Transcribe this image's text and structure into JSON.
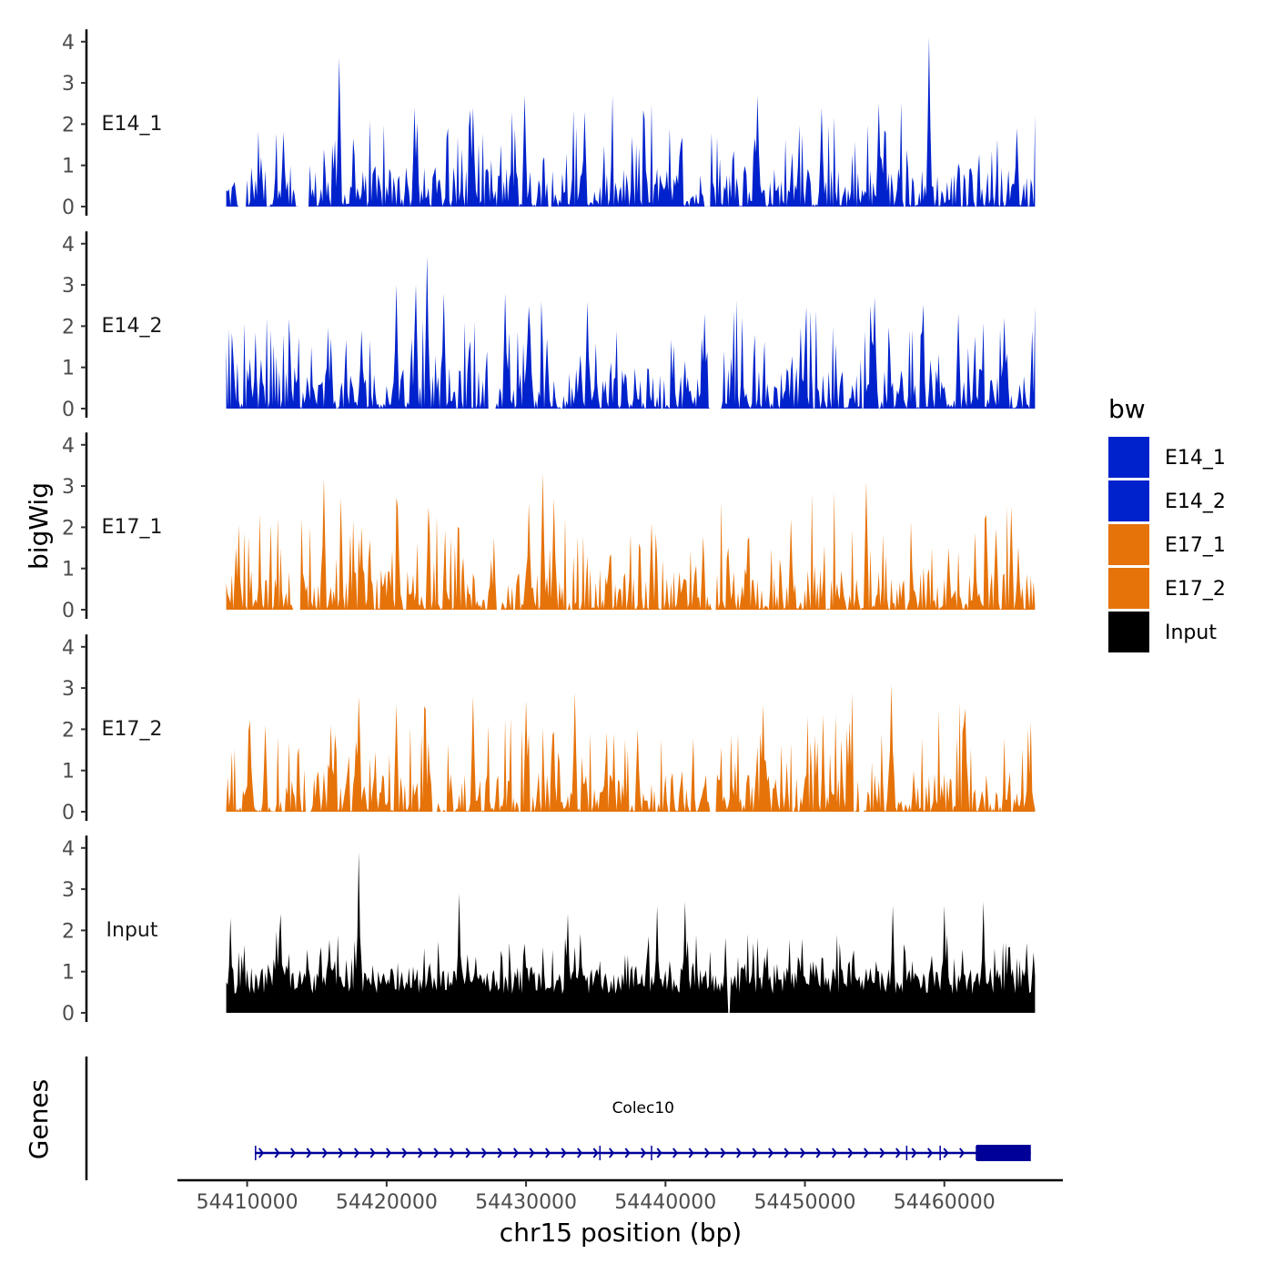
{
  "chart_data": {
    "type": "area",
    "ylabel": "bigWig",
    "genes_label": "Genes",
    "xlabel": "chr15 position (bp)",
    "x_range": [
      54408500,
      54466500
    ],
    "y_range": [
      0,
      4.2
    ],
    "xlim": [
      54405000,
      54468500
    ],
    "x_ticks": [
      54410000,
      54420000,
      54430000,
      54440000,
      54450000,
      54460000
    ],
    "x_tick_labels": [
      "54410000",
      "54420000",
      "54430000",
      "54440000",
      "54450000",
      "54460000"
    ],
    "y_ticks": [
      0,
      1,
      2,
      3,
      4
    ],
    "y_tick_labels": [
      "0",
      "1",
      "2",
      "3",
      "4"
    ],
    "tracks": [
      {
        "name": "E14_1",
        "color": "#0022CC",
        "max": 4.1,
        "peaks": [
          [
            54411000,
            1.2
          ],
          [
            54412600,
            1.8
          ],
          [
            54416600,
            3.6
          ],
          [
            54422000,
            2.4
          ],
          [
            54426200,
            2.4
          ],
          [
            54429900,
            2.7
          ],
          [
            54434200,
            2.3
          ],
          [
            54446600,
            2.7
          ],
          [
            54451200,
            2.4
          ],
          [
            54455300,
            2.5
          ],
          [
            54458900,
            4.1
          ],
          [
            54465200,
            1.9
          ]
        ]
      },
      {
        "name": "E14_2",
        "color": "#0022CC",
        "max": 3.7,
        "peaks": [
          [
            54409000,
            1.3
          ],
          [
            54411000,
            1.2
          ],
          [
            54418200,
            1.9
          ],
          [
            54420700,
            3.0
          ],
          [
            54422100,
            3.0
          ],
          [
            54422900,
            3.7
          ],
          [
            54424100,
            2.8
          ],
          [
            54428500,
            2.8
          ],
          [
            54431500,
            1.7
          ],
          [
            54434400,
            2.6
          ],
          [
            54442800,
            2.3
          ],
          [
            54455000,
            2.7
          ],
          [
            54461000,
            2.3
          ],
          [
            54464300,
            2.2
          ]
        ]
      },
      {
        "name": "E17_1",
        "color": "#E6730A",
        "max": 3.3,
        "peaks": [
          [
            54409200,
            1.5
          ],
          [
            54415500,
            3.2
          ],
          [
            54418200,
            2.0
          ],
          [
            54420800,
            2.5
          ],
          [
            54423000,
            2.5
          ],
          [
            54430200,
            2.6
          ],
          [
            54431200,
            3.3
          ],
          [
            54432000,
            2.7
          ],
          [
            54439000,
            2.1
          ],
          [
            54449000,
            2.2
          ],
          [
            54454400,
            3.1
          ],
          [
            54460300,
            1.5
          ],
          [
            54463000,
            2.3
          ],
          [
            54464800,
            2.5
          ]
        ]
      },
      {
        "name": "E17_2",
        "color": "#E6730A",
        "max": 3.1,
        "peaks": [
          [
            54410200,
            2.2
          ],
          [
            54411300,
            2.1
          ],
          [
            54416000,
            2.1
          ],
          [
            54418000,
            2.8
          ],
          [
            54420700,
            2.6
          ],
          [
            54426200,
            2.8
          ],
          [
            54430000,
            2.7
          ],
          [
            54433500,
            2.9
          ],
          [
            54438000,
            2.0
          ],
          [
            54443400,
            2.8
          ],
          [
            54447000,
            2.6
          ],
          [
            54453200,
            2.2
          ],
          [
            54456200,
            3.1
          ],
          [
            54461500,
            2.5
          ]
        ]
      },
      {
        "name": "Input",
        "color": "#000000",
        "max": 3.9,
        "peaks": [
          [
            54408800,
            2.3
          ],
          [
            54412400,
            2.4
          ],
          [
            54418000,
            3.9
          ],
          [
            54425200,
            2.9
          ],
          [
            54433000,
            2.4
          ],
          [
            54439400,
            2.6
          ],
          [
            54441400,
            2.7
          ],
          [
            54449800,
            1.8
          ],
          [
            54456300,
            2.6
          ],
          [
            54460000,
            2.6
          ],
          [
            54462800,
            2.7
          ],
          [
            54465900,
            1.7
          ]
        ]
      }
    ],
    "legend": {
      "title": "bw",
      "position": "right",
      "entries": [
        {
          "label": "E14_1",
          "color": "#0022CC"
        },
        {
          "label": "E14_2",
          "color": "#0022CC"
        },
        {
          "label": "E17_1",
          "color": "#E6730A"
        },
        {
          "label": "E17_2",
          "color": "#E6730A"
        },
        {
          "label": "Input",
          "color": "#000000"
        }
      ]
    },
    "gene": {
      "name": "Colec10",
      "strand": "+",
      "start": 54410600,
      "end": 54466200,
      "cds_start": 54462300,
      "exons": [
        54410600,
        54435300,
        54439000,
        54457300,
        54459700,
        54462300
      ],
      "color": "#000099"
    }
  }
}
